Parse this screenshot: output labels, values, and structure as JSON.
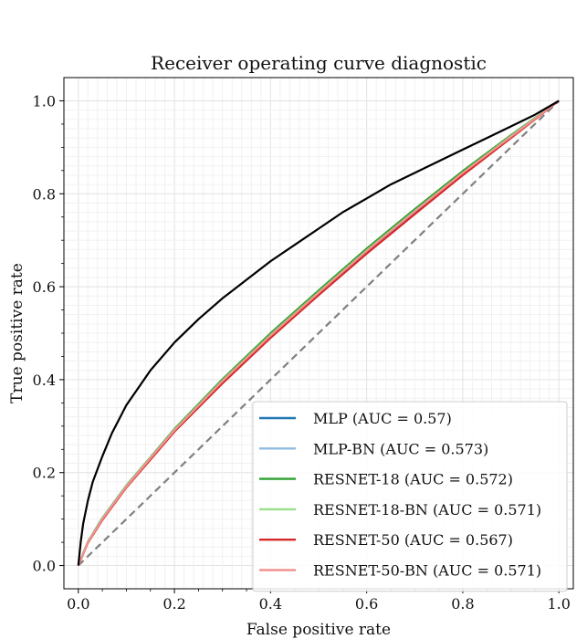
{
  "chart_data": {
    "type": "line",
    "title": "Receiver operating curve diagnostic",
    "xlabel": "False positive rate",
    "ylabel": "True positive rate",
    "xlim": [
      -0.03,
      1.03
    ],
    "ylim": [
      -0.05,
      1.05
    ],
    "xticks": [
      "0.0",
      "0.2",
      "0.4",
      "0.6",
      "0.8",
      "1.0"
    ],
    "yticks": [
      "0.0",
      "0.2",
      "0.4",
      "0.6",
      "0.8",
      "1.0"
    ],
    "grid": true,
    "legend_position": "lower-right",
    "chance_line": {
      "x": [
        0,
        1
      ],
      "y": [
        0,
        1
      ],
      "color": "#808080",
      "style": "dashed"
    },
    "series": [
      {
        "name": "MLP (AUC = 0.57)",
        "color": "#1f77b4",
        "x": [
          0,
          0.02,
          0.05,
          0.1,
          0.15,
          0.2,
          0.3,
          0.4,
          0.5,
          0.6,
          0.7,
          0.8,
          0.9,
          1.0
        ],
        "y": [
          0,
          0.05,
          0.1,
          0.17,
          0.23,
          0.29,
          0.395,
          0.493,
          0.585,
          0.675,
          0.76,
          0.843,
          0.922,
          1.0
        ]
      },
      {
        "name": "MLP-BN (AUC = 0.573)",
        "color": "#8fbbe0",
        "x": [
          0,
          0.02,
          0.05,
          0.1,
          0.15,
          0.2,
          0.3,
          0.4,
          0.5,
          0.6,
          0.7,
          0.8,
          0.9,
          1.0
        ],
        "y": [
          0,
          0.051,
          0.102,
          0.172,
          0.233,
          0.293,
          0.4,
          0.498,
          0.59,
          0.68,
          0.765,
          0.847,
          0.925,
          1.0
        ]
      },
      {
        "name": "RESNET-18 (AUC = 0.572)",
        "color": "#2ca02c",
        "x": [
          0,
          0.02,
          0.05,
          0.1,
          0.15,
          0.2,
          0.3,
          0.4,
          0.5,
          0.6,
          0.7,
          0.8,
          0.9,
          1.0
        ],
        "y": [
          0,
          0.051,
          0.102,
          0.172,
          0.233,
          0.294,
          0.401,
          0.5,
          0.592,
          0.682,
          0.767,
          0.849,
          0.926,
          1.0
        ]
      },
      {
        "name": "RESNET-18-BN (AUC = 0.571)",
        "color": "#98df8a",
        "x": [
          0,
          0.02,
          0.05,
          0.1,
          0.15,
          0.2,
          0.3,
          0.4,
          0.5,
          0.6,
          0.7,
          0.8,
          0.9,
          1.0
        ],
        "y": [
          0,
          0.05,
          0.101,
          0.171,
          0.232,
          0.292,
          0.398,
          0.496,
          0.588,
          0.678,
          0.763,
          0.845,
          0.924,
          1.0
        ]
      },
      {
        "name": "RESNET-50 (AUC = 0.567)",
        "color": "#d62728",
        "x": [
          0,
          0.02,
          0.05,
          0.1,
          0.15,
          0.2,
          0.3,
          0.4,
          0.5,
          0.6,
          0.7,
          0.8,
          0.9,
          1.0
        ],
        "y": [
          0,
          0.049,
          0.098,
          0.168,
          0.228,
          0.288,
          0.392,
          0.49,
          0.582,
          0.671,
          0.756,
          0.84,
          0.92,
          1.0
        ]
      },
      {
        "name": "RESNET-50-BN (AUC = 0.571)",
        "color": "#f0928f",
        "x": [
          0,
          0.02,
          0.05,
          0.1,
          0.15,
          0.2,
          0.3,
          0.4,
          0.5,
          0.6,
          0.7,
          0.8,
          0.9,
          1.0
        ],
        "y": [
          0,
          0.05,
          0.1,
          0.17,
          0.231,
          0.291,
          0.397,
          0.495,
          0.587,
          0.677,
          0.762,
          0.845,
          0.923,
          1.0
        ]
      },
      {
        "name": "",
        "color": "#000000",
        "x": [
          0,
          0.005,
          0.01,
          0.02,
          0.03,
          0.05,
          0.07,
          0.1,
          0.15,
          0.2,
          0.25,
          0.3,
          0.35,
          0.4,
          0.45,
          0.5,
          0.55,
          0.6,
          0.65,
          0.7,
          0.75,
          0.8,
          0.85,
          0.9,
          0.95,
          1.0
        ],
        "y": [
          0,
          0.05,
          0.09,
          0.14,
          0.18,
          0.235,
          0.285,
          0.345,
          0.42,
          0.48,
          0.53,
          0.575,
          0.615,
          0.655,
          0.69,
          0.725,
          0.76,
          0.79,
          0.82,
          0.845,
          0.87,
          0.895,
          0.92,
          0.945,
          0.97,
          1.0
        ]
      }
    ]
  }
}
